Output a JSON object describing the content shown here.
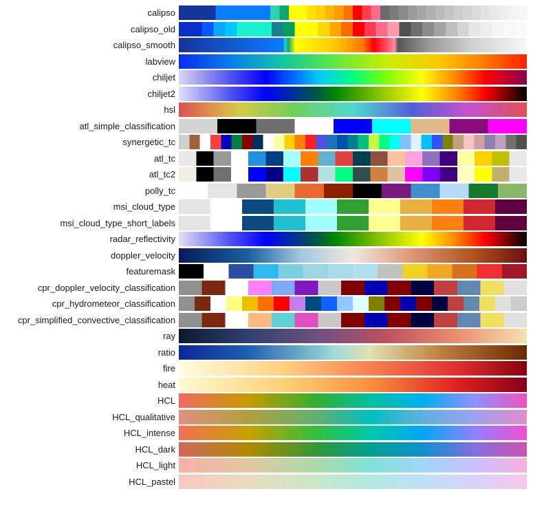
{
  "chart_data": {
    "type": "heatmap",
    "title": "",
    "colormaps": [
      {
        "name": "calipso",
        "kind": "discrete",
        "colors": [
          "#15349a",
          "#15349a",
          "#15349a",
          "#15349a",
          "#0a7cff",
          "#0a7cff",
          "#0a7cff",
          "#0a7cff",
          "#0a7cff",
          "#0a7cff",
          "#2bd1b4",
          "#0ea76b",
          "#ffff00",
          "#ffff00",
          "#ffe000",
          "#ffd000",
          "#ffb400",
          "#ff9a00",
          "#ff7200",
          "#ff0000",
          "#ff3b50",
          "#ff6a8a",
          "#6a6a6a",
          "#7a7a7a",
          "#8a8a8a",
          "#9a9a9a",
          "#a6a6a6",
          "#b0b0b0",
          "#bababa",
          "#c4c4c4",
          "#cccccc",
          "#d4d4d4",
          "#dbdbdb",
          "#e2e2e2",
          "#e8e8e8",
          "#eeeeee",
          "#f3f3f3",
          "#f7f7f7"
        ]
      },
      {
        "name": "calipso_old",
        "kind": "discrete",
        "colors": [
          "#0a2fc8",
          "#0a2fc8",
          "#0a55ff",
          "#0aa6ff",
          "#00c8ff",
          "#18f0d0",
          "#18f0d0",
          "#18f0d0",
          "#1c7f8e",
          "#00a060",
          "#ffff00",
          "#ffff00",
          "#ffd700",
          "#ffa500",
          "#ff6a00",
          "#ff0000",
          "#ff3a50",
          "#ff6a8a",
          "#ff9aaa",
          "#505050",
          "#6e6e6e",
          "#8c8c8c",
          "#a4a4a4",
          "#bebebe",
          "#d4d4d4",
          "#e6e6e6",
          "#eeeeee",
          "#f4f4f4",
          "#f8f8f8",
          "#fafafa"
        ]
      },
      {
        "name": "calipso_smooth",
        "kind": "gradient",
        "stops": [
          "#15349a 0%",
          "#0a7cff 30%",
          "#2bd1b4 30.5%",
          "#0ea76b 31.5%",
          "#ffff00 33.5%",
          "#ffc800 45%",
          "#ff7800 53%",
          "#ff0000 56%",
          "#ff6a8a 61%",
          "#ff90a0 62%",
          "#555555 63%",
          "#9a9a9a 72%",
          "#cfcfcf 84%",
          "#f8f8f8 100%"
        ]
      },
      {
        "name": "labview",
        "kind": "gradient",
        "stops": [
          "#0a2cf0 0%",
          "#0a7ef0 15%",
          "#10c8a0 30%",
          "#60e840 45%",
          "#c8f000 60%",
          "#ffc800 75%",
          "#ff7800 88%",
          "#ff1e00 100%"
        ]
      },
      {
        "name": "chiljet",
        "kind": "gradient",
        "stops": [
          "#d8d8f0 0%",
          "#5050f0 15%",
          "#0000ff 25%",
          "#00c8ff 40%",
          "#00ff80 50%",
          "#80ff00 60%",
          "#ffff00 70%",
          "#ff8000 80%",
          "#ff0000 88%",
          "#8a0050 100%"
        ]
      },
      {
        "name": "chiljet2",
        "kind": "gradient",
        "stops": [
          "#e0e0f8 0%",
          "#5050f0 15%",
          "#0000ff 25%",
          "#005a40 40%",
          "#008800 45%",
          "#a0d000 60%",
          "#ffff00 70%",
          "#ff8000 80%",
          "#ff0000 88%",
          "#000000 100%"
        ]
      },
      {
        "name": "hsl",
        "kind": "gradient",
        "stops": [
          "#e05050 0%",
          "#d8c848 17%",
          "#70d058 33%",
          "#50d8d0 50%",
          "#5060d8 67%",
          "#c850d0 83%",
          "#e05050 100%"
        ]
      },
      {
        "name": "atl_simple_classification",
        "kind": "discrete",
        "colors": [
          "#d4d4d4",
          "#000000",
          "#6e6e6e",
          "#ffffff",
          "#0000ff",
          "#00ffff",
          "#e0b889",
          "#8b0a7f",
          "#ff00ff"
        ]
      },
      {
        "name": "synergetic_tc",
        "kind": "discrete",
        "colors": [
          "#cfcfcf",
          "#a0603a",
          "#ffffff",
          "#ff4040",
          "#0000c0",
          "#008040",
          "#8b0000",
          "#003060",
          "#ffffff",
          "#ffffa0",
          "#ffd000",
          "#ff8000",
          "#ff2020",
          "#5050e0",
          "#2070c0",
          "#0050b0",
          "#008090",
          "#00c080",
          "#c0ff40",
          "#00ff80",
          "#00ffff",
          "#80c0ff",
          "#e0f0ff",
          "#00c0ff",
          "#3050ff",
          "#808000",
          "#c0a080",
          "#ffc0c0",
          "#d0a0a0",
          "#9080b0",
          "#c0a0c0",
          "#707070",
          "#505050"
        ]
      },
      {
        "name": "atl_tc",
        "kind": "discrete",
        "colors": [
          "#e8e8e8",
          "#000000",
          "#9a9a9a",
          "#ffffff",
          "#2090e0",
          "#004080",
          "#a0ffff",
          "#ff8000",
          "#60b0d0",
          "#e04040",
          "#004050",
          "#905040",
          "#ffc0a0",
          "#ffa0e0",
          "#9070c0",
          "#400080",
          "#ffffa0",
          "#ffd000",
          "#c0c000",
          "#e8e8e8"
        ]
      },
      {
        "name": "atl_tc2",
        "kind": "discrete",
        "colors": [
          "#f0f0e0",
          "#000000",
          "#707070",
          "#ffffff",
          "#0000ff",
          "#00008b",
          "#00ffff",
          "#b03030",
          "#b0e0e0",
          "#00ff80",
          "#305050",
          "#d08040",
          "#e0c0a0",
          "#ff00ff",
          "#8000ff",
          "#400080",
          "#ffffc0",
          "#ffff00",
          "#c0b070",
          "#e8e8e8"
        ]
      },
      {
        "name": "polly_tc",
        "kind": "discrete",
        "colors": [
          "#ffffff",
          "#e4e4e4",
          "#9a9a9a",
          "#e0cc80",
          "#e86a30",
          "#8b2000",
          "#000000",
          "#7a1a80",
          "#4090d0",
          "#b8dcf8",
          "#157a30",
          "#8ab868"
        ]
      },
      {
        "name": "msi_cloud_type",
        "kind": "discrete",
        "colors": [
          "#e4e4e4",
          "#ffffff",
          "#0a4a80",
          "#20c0d0",
          "#a0ffff",
          "#30a030",
          "#ffff90",
          "#e8b040",
          "#ff8010",
          "#d02830",
          "#600040"
        ]
      },
      {
        "name": "msi_cloud_type_short_labels",
        "kind": "discrete",
        "colors": [
          "#e4e4e4",
          "#ffffff",
          "#0a4a80",
          "#20c0d0",
          "#a0ffff",
          "#30a030",
          "#ffff90",
          "#e8b040",
          "#ff8010",
          "#d02830",
          "#600040"
        ]
      },
      {
        "name": "radar_reflectivity",
        "kind": "gradient",
        "stops": [
          "#e0e0f8 0%",
          "#5050f0 15%",
          "#0000ff 25%",
          "#005a40 40%",
          "#008800 45%",
          "#a0d000 60%",
          "#ffff00 70%",
          "#ff8000 80%",
          "#ff0000 88%",
          "#000000 100%"
        ]
      },
      {
        "name": "doppler_velocity",
        "kind": "gradient",
        "stops": [
          "#0a1a5a 0%",
          "#1a60a0 20%",
          "#a0c8e0 35%",
          "#f0e8e0 50%",
          "#e0a080 65%",
          "#b05020 85%",
          "#6a1010 100%"
        ]
      },
      {
        "name": "featuremask",
        "kind": "discrete",
        "colors": [
          "#000000",
          "#ffffff",
          "#2c4ea0",
          "#30b8f0",
          "#7ccfe0",
          "#9cd6e4",
          "#a8dcec",
          "#b0e0f0",
          "#c0c0c0",
          "#f0d020",
          "#f0a820",
          "#d87020",
          "#f03030",
          "#a01828"
        ]
      },
      {
        "name": "cpr_doppler_velocity_classification",
        "kind": "discrete",
        "colors": [
          "#909090",
          "#7a2810",
          "#ffffff",
          "#ff80ff",
          "#80a8f8",
          "#8018c0",
          "#c8c8c8",
          "#800000",
          "#0000b0",
          "#800000",
          "#000040",
          "#c04040",
          "#6088b0",
          "#f0e060",
          "#e0e0e0"
        ]
      },
      {
        "name": "cpr_hydrometeor_classification",
        "kind": "discrete",
        "colors": [
          "#909090",
          "#7a2810",
          "#ffffff",
          "#ffff80",
          "#f0c000",
          "#ff7000",
          "#ff0000",
          "#c080f0",
          "#004880",
          "#1060ff",
          "#90c8ff",
          "#e0ffff",
          "#808000",
          "#800000",
          "#0000b0",
          "#800000",
          "#000040",
          "#c04040",
          "#6088b0",
          "#f0e060",
          "#e0e0e0",
          "#cccccc"
        ]
      },
      {
        "name": "cpr_simplified_convective_classification",
        "kind": "discrete",
        "colors": [
          "#909090",
          "#7a2810",
          "#ffffff",
          "#ffb880",
          "#60d0d8",
          "#e050c0",
          "#c8c8c8",
          "#800000",
          "#0000b0",
          "#800000",
          "#000040",
          "#c04040",
          "#6088b0",
          "#f0e060",
          "#e0e0e0"
        ]
      },
      {
        "name": "ray",
        "kind": "gradient",
        "stops": [
          "#0a1a30 0%",
          "#304070 20%",
          "#705080 40%",
          "#c05060 60%",
          "#e89070 80%",
          "#f8e0b0 100%"
        ]
      },
      {
        "name": "ratio",
        "kind": "gradient",
        "stops": [
          "#0a2898 0%",
          "#2060b0 20%",
          "#a0dcd8 45%",
          "#e0e0b0 55%",
          "#c08040 75%",
          "#6a2a00 100%"
        ]
      },
      {
        "name": "fire",
        "kind": "gradient",
        "stops": [
          "#fffde0 0%",
          "#ffd080 30%",
          "#f88050 55%",
          "#e03030 80%",
          "#8a0010 100%"
        ]
      },
      {
        "name": "heat",
        "kind": "gradient",
        "stops": [
          "#fffbd0 0%",
          "#ffd078 30%",
          "#f89040 55%",
          "#e02020 80%",
          "#8a0018 100%"
        ]
      },
      {
        "name": "HCL",
        "kind": "gradient",
        "stops": [
          "#f06a60 0%",
          "#c89a00 20%",
          "#30b030 40%",
          "#00c0a0 55%",
          "#00b0f0 70%",
          "#9090ff 85%",
          "#f050c0 100%"
        ]
      },
      {
        "name": "HCL_qualitative",
        "kind": "gradient",
        "stops": [
          "#e09080 0%",
          "#b0a040 20%",
          "#60b070 40%",
          "#00c0c0 55%",
          "#60b0e0 70%",
          "#a0a0f0 85%",
          "#e090c8 100%"
        ]
      },
      {
        "name": "HCL_intense",
        "kind": "gradient",
        "stops": [
          "#f07058 0%",
          "#c8a000 20%",
          "#30c040 40%",
          "#00c8a8 55%",
          "#00a8f8 70%",
          "#9080ff 85%",
          "#f050d0 100%"
        ]
      },
      {
        "name": "HCL_dark",
        "kind": "gradient",
        "stops": [
          "#d06860 0%",
          "#b08a00 20%",
          "#309838 40%",
          "#00a090 55%",
          "#1090d0 70%",
          "#8070e0 85%",
          "#d050b0 100%"
        ]
      },
      {
        "name": "HCL_light",
        "kind": "gradient",
        "stops": [
          "#f8b0a8 0%",
          "#e0c8a0 20%",
          "#a8dca8 40%",
          "#80e0d8 55%",
          "#a0d8f8 70%",
          "#c8c0ff 85%",
          "#f8b0e0 100%"
        ]
      },
      {
        "name": "HCL_pastel",
        "kind": "gradient",
        "stops": [
          "#f8c8c0 0%",
          "#e8dcc0 20%",
          "#c8e8c8 40%",
          "#b0e8e0 55%",
          "#c0e0f8 70%",
          "#d8d0ff 85%",
          "#f8c8e8 100%"
        ]
      }
    ]
  }
}
